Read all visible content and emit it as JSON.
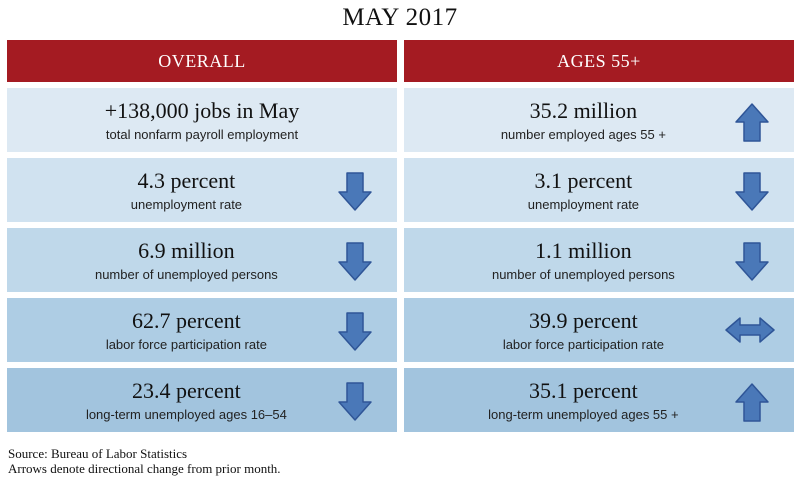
{
  "title": "MAY 2017",
  "columns": {
    "overall": "OVERALL",
    "ages55": "AGES 55+"
  },
  "rows": [
    {
      "overall": {
        "value": "+138,000 jobs in May",
        "desc": "total nonfarm payroll employment",
        "arrow": "none"
      },
      "ages55": {
        "value": "35.2 million",
        "desc": "number employed ages 55 +",
        "arrow": "up"
      }
    },
    {
      "overall": {
        "value": "4.3 percent",
        "desc": "unemployment rate",
        "arrow": "down"
      },
      "ages55": {
        "value": "3.1 percent",
        "desc": "unemployment rate",
        "arrow": "down"
      }
    },
    {
      "overall": {
        "value": "6.9 million",
        "desc": "number of unemployed persons",
        "arrow": "down"
      },
      "ages55": {
        "value": "1.1 million",
        "desc": "number of unemployed persons",
        "arrow": "down"
      }
    },
    {
      "overall": {
        "value": "62.7 percent",
        "desc": "labor force participation rate",
        "arrow": "down"
      },
      "ages55": {
        "value": "39.9 percent",
        "desc": "labor force participation rate",
        "arrow": "left-right"
      }
    },
    {
      "overall": {
        "value": "23.4 percent",
        "desc": "long-term unemployed ages 16–54",
        "arrow": "down"
      },
      "ages55": {
        "value": "35.1 percent",
        "desc": "long-term unemployed ages 55 +",
        "arrow": "up"
      }
    }
  ],
  "row_colors": [
    "#dde9f3",
    "#d0e2f0",
    "#bfd8ea",
    "#aecde4",
    "#a2c4de"
  ],
  "arrow_fill": "#4a78b8",
  "arrow_stroke": "#2f5597",
  "footer": {
    "source": "Source: Bureau of Labor Statistics",
    "note": "Arrows denote directional change from prior month."
  }
}
